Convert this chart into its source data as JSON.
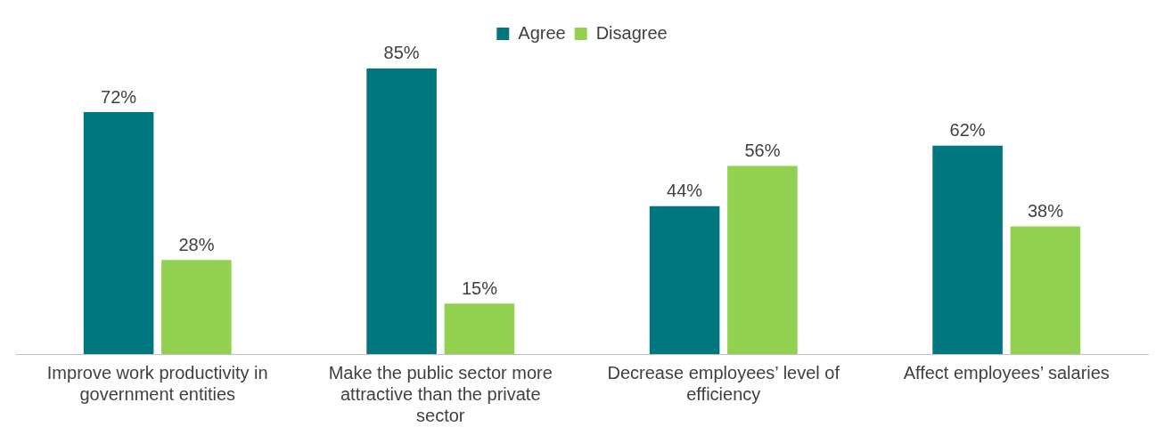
{
  "chart_data": {
    "type": "bar",
    "categories": [
      "Improve work productivity in government entities",
      "Make the public sector more attractive than the private sector",
      "Decrease employees’ level of efficiency",
      "Affect employees’ salaries"
    ],
    "series": [
      {
        "name": "Agree",
        "color": "#00777f",
        "values": [
          72,
          85,
          44,
          62
        ],
        "value_labels": [
          "72%",
          "85%",
          "44%",
          "62%"
        ]
      },
      {
        "name": "Disagree",
        "color": "#92d050",
        "values": [
          28,
          15,
          56,
          38
        ],
        "value_labels": [
          "28%",
          "15%",
          "56%",
          "38%"
        ]
      }
    ],
    "grid": false,
    "legend": "top"
  }
}
